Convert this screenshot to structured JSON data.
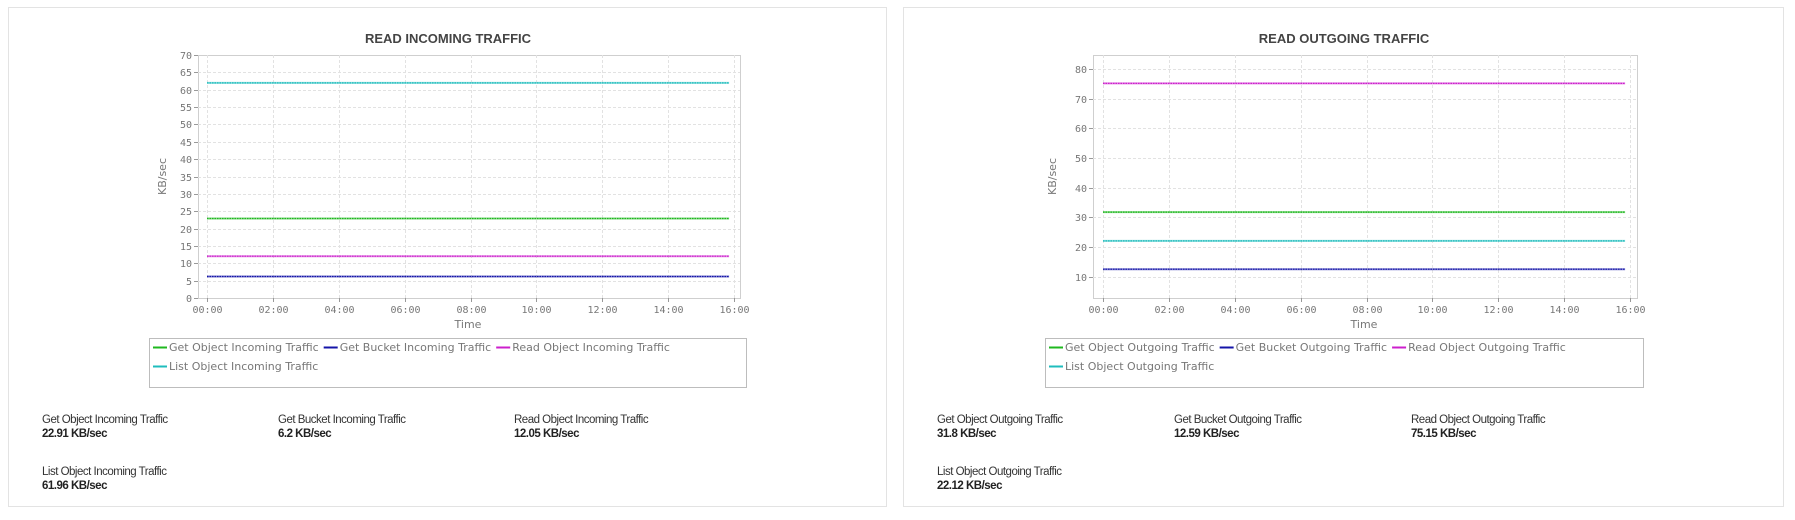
{
  "colors": {
    "green": "#1fb81f",
    "blue": "#1414a8",
    "magenta": "#cc1fcc",
    "cyan": "#1fbdbd",
    "grid": "#e2e2e2",
    "axis": "#cfcfcf"
  },
  "panels": [
    {
      "title": "READ INCOMING TRAFFIC",
      "stats": [
        {
          "label": "Get Object Incoming Traffic",
          "value": "22.91 KB/sec"
        },
        {
          "label": "Get Bucket Incoming Traffic",
          "value": "6.2 KB/sec"
        },
        {
          "label": "Read Object Incoming Traffic",
          "value": "12.05 KB/sec"
        },
        {
          "label": "List Object Incoming Traffic",
          "value": "61.96 KB/sec"
        }
      ]
    },
    {
      "title": "READ OUTGOING TRAFFIC",
      "stats": [
        {
          "label": "Get Object Outgoing Traffic",
          "value": "31.8 KB/sec"
        },
        {
          "label": "Get Bucket Outgoing Traffic",
          "value": "12.59 KB/sec"
        },
        {
          "label": "Read Object Outgoing Traffic",
          "value": "75.15 KB/sec"
        },
        {
          "label": "List Object Outgoing Traffic",
          "value": "22.12 KB/sec"
        }
      ]
    }
  ],
  "chart_data": [
    {
      "type": "line",
      "title": "READ INCOMING TRAFFIC",
      "xlabel": "Time",
      "ylabel": "KB/sec",
      "x_ticks": [
        "00:00",
        "02:00",
        "04:00",
        "06:00",
        "08:00",
        "10:00",
        "12:00",
        "14:00",
        "16:00"
      ],
      "y_ticks": [
        0,
        5,
        10,
        15,
        20,
        25,
        30,
        35,
        40,
        45,
        50,
        55,
        60,
        65,
        70
      ],
      "ylim": [
        0,
        70
      ],
      "xlim_hours": [
        0,
        16
      ],
      "grid": true,
      "legend_position": "bottom",
      "series": [
        {
          "name": "Get Object Incoming Traffic",
          "color": "#1fb81f",
          "x_hours": [
            0,
            15.85
          ],
          "values": [
            22.91,
            22.91
          ]
        },
        {
          "name": "Get Bucket Incoming Traffic",
          "color": "#1414a8",
          "x_hours": [
            0,
            15.85
          ],
          "values": [
            6.2,
            6.2
          ]
        },
        {
          "name": "Read Object Incoming Traffic",
          "color": "#cc1fcc",
          "x_hours": [
            0,
            15.85
          ],
          "values": [
            12.05,
            12.05
          ]
        },
        {
          "name": "List Object Incoming Traffic",
          "color": "#1fbdbd",
          "x_hours": [
            0,
            15.85
          ],
          "values": [
            61.96,
            61.96
          ]
        }
      ]
    },
    {
      "type": "line",
      "title": "READ OUTGOING TRAFFIC",
      "xlabel": "Time",
      "ylabel": "KB/sec",
      "x_ticks": [
        "00:00",
        "02:00",
        "04:00",
        "06:00",
        "08:00",
        "10:00",
        "12:00",
        "14:00",
        "16:00"
      ],
      "y_ticks": [
        10,
        20,
        30,
        40,
        50,
        60,
        70,
        80
      ],
      "ylim": [
        2.9,
        84.7
      ],
      "xlim_hours": [
        0,
        16
      ],
      "grid": true,
      "legend_position": "bottom",
      "series": [
        {
          "name": "Get Object Outgoing Traffic",
          "color": "#1fb81f",
          "x_hours": [
            0,
            15.85
          ],
          "values": [
            31.8,
            31.8
          ]
        },
        {
          "name": "Get Bucket Outgoing Traffic",
          "color": "#1414a8",
          "x_hours": [
            0,
            15.85
          ],
          "values": [
            12.59,
            12.59
          ]
        },
        {
          "name": "Read Object Outgoing Traffic",
          "color": "#cc1fcc",
          "x_hours": [
            0,
            15.85
          ],
          "values": [
            75.15,
            75.15
          ]
        },
        {
          "name": "List Object Outgoing Traffic",
          "color": "#1fbdbd",
          "x_hours": [
            0,
            15.85
          ],
          "values": [
            22.12,
            22.12
          ]
        }
      ]
    }
  ]
}
